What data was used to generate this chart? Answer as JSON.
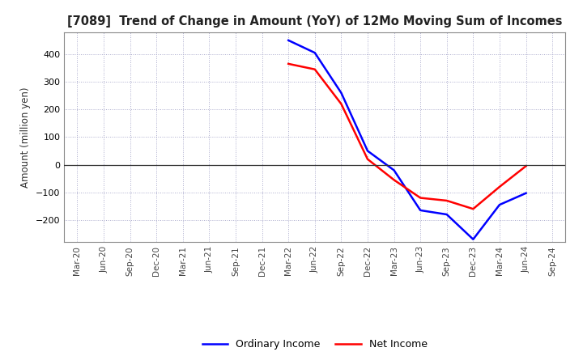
{
  "title": "[7089]  Trend of Change in Amount (YoY) of 12Mo Moving Sum of Incomes",
  "ylabel": "Amount (million yen)",
  "x_labels": [
    "Mar-20",
    "Jun-20",
    "Sep-20",
    "Dec-20",
    "Mar-21",
    "Jun-21",
    "Sep-21",
    "Dec-21",
    "Mar-22",
    "Jun-22",
    "Sep-22",
    "Dec-22",
    "Mar-23",
    "Jun-23",
    "Sep-23",
    "Dec-23",
    "Mar-24",
    "Jun-24",
    "Sep-24"
  ],
  "ordinary_income": [
    null,
    null,
    null,
    null,
    null,
    null,
    null,
    null,
    450,
    405,
    260,
    50,
    -20,
    -165,
    -180,
    -270,
    -145,
    -103,
    null
  ],
  "net_income": [
    null,
    null,
    null,
    null,
    null,
    null,
    null,
    null,
    365,
    345,
    220,
    20,
    -55,
    -120,
    -130,
    -160,
    -80,
    -5,
    null
  ],
  "ordinary_color": "#0000ff",
  "net_color": "#ff0000",
  "ylim": [
    -280,
    480
  ],
  "yticks": [
    -200,
    -100,
    0,
    100,
    200,
    300,
    400
  ],
  "background_color": "#ffffff",
  "grid_color": "#aaaacc",
  "legend_ordinary": "Ordinary Income",
  "legend_net": "Net Income"
}
